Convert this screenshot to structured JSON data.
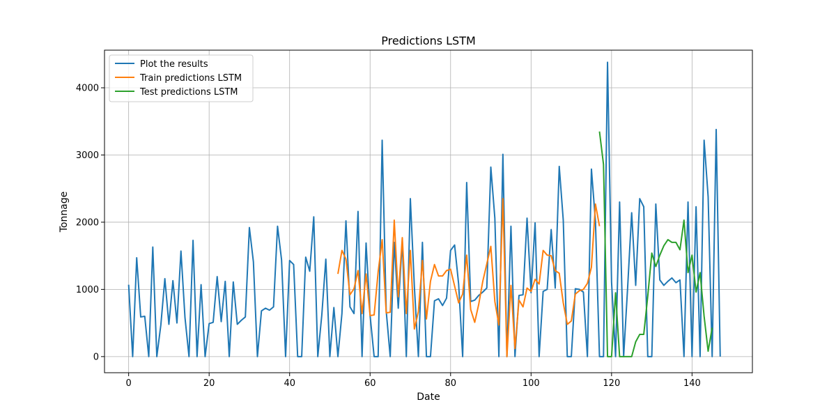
{
  "chart_data": {
    "type": "line",
    "title": "Predictions LSTM",
    "xlabel": "Date",
    "ylabel": "Tonnage",
    "xlim": [
      -6,
      155
    ],
    "ylim": [
      -240,
      4560
    ],
    "xticks": [
      0,
      20,
      40,
      60,
      80,
      100,
      120,
      140
    ],
    "yticks": [
      0,
      1000,
      2000,
      3000,
      4000
    ],
    "grid": true,
    "legend_position": "top-left",
    "series": [
      {
        "name": "Plot the results",
        "color": "#1f77b4",
        "x_start": 0,
        "values": [
          1070,
          0,
          1470,
          590,
          600,
          0,
          1630,
          0,
          470,
          1160,
          480,
          1130,
          500,
          1570,
          580,
          0,
          1730,
          0,
          1070,
          0,
          490,
          510,
          1190,
          520,
          1120,
          0,
          1110,
          480,
          540,
          590,
          1920,
          1410,
          0,
          680,
          720,
          690,
          740,
          1940,
          1440,
          0,
          1430,
          1370,
          0,
          0,
          1480,
          1270,
          2080,
          0,
          620,
          1450,
          0,
          730,
          0,
          640,
          2020,
          740,
          640,
          2160,
          0,
          1690,
          610,
          0,
          0,
          3220,
          680,
          0,
          1700,
          720,
          1720,
          0,
          2350,
          1040,
          0,
          1700,
          0,
          0,
          830,
          860,
          760,
          870,
          1580,
          1660,
          1080,
          0,
          2590,
          820,
          840,
          910,
          960,
          1020,
          2820,
          2060,
          0,
          3010,
          0,
          1940,
          0,
          910,
          920,
          2060,
          950,
          1990,
          0,
          970,
          1000,
          1890,
          1020,
          2830,
          2030,
          0,
          0,
          1010,
          1000,
          960,
          0,
          2790,
          2010,
          0,
          0,
          4380,
          1110,
          0,
          2300,
          0,
          1030,
          2140,
          1060,
          2350,
          2230,
          0,
          0,
          2270,
          1140,
          1060,
          1120,
          1170,
          1100,
          1140,
          0,
          2300,
          0,
          2230,
          0,
          3220,
          2380,
          0,
          3380,
          0
        ]
      },
      {
        "name": "Train predictions LSTM",
        "color": "#ff7f0e",
        "x_start": 52,
        "values": [
          1230,
          1580,
          1450,
          920,
          1010,
          1280,
          640,
          1230,
          610,
          620,
          1260,
          1740,
          650,
          660,
          2030,
          890,
          1770,
          640,
          1580,
          410,
          670,
          1430,
          560,
          1120,
          1370,
          1200,
          1200,
          1280,
          1300,
          1050,
          800,
          930,
          1510,
          700,
          510,
          780,
          1120,
          1380,
          1640,
          820,
          470,
          2350,
          0,
          1060,
          120,
          840,
          740,
          1020,
          970,
          1150,
          1080,
          1580,
          1510,
          1500,
          1280,
          1240,
          800,
          480,
          530,
          930,
          980,
          1000,
          1090,
          1330,
          2270,
          1940
        ]
      },
      {
        "name": "Test predictions LSTM",
        "color": "#2ca02c",
        "x_start": 117,
        "values": [
          3350,
          2860,
          0,
          0,
          950,
          0,
          0,
          0,
          0,
          220,
          330,
          330,
          900,
          1540,
          1340,
          1510,
          1650,
          1740,
          1700,
          1700,
          1590,
          2030,
          1250,
          1510,
          960,
          1250,
          600,
          80,
          430
        ]
      }
    ]
  }
}
